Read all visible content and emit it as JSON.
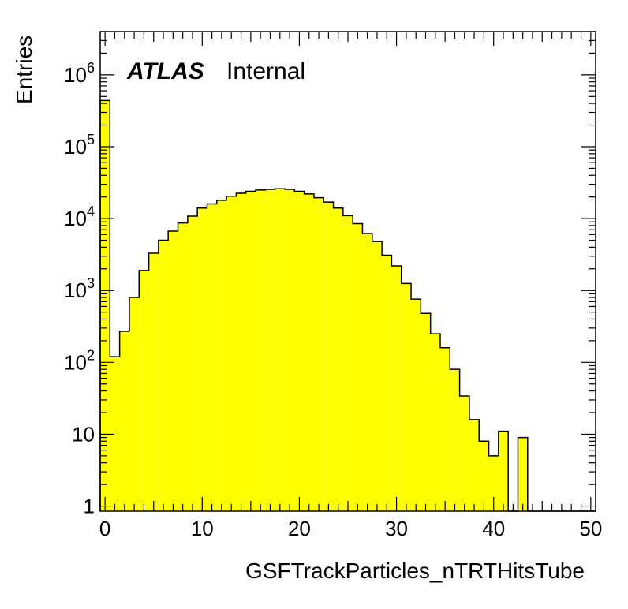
{
  "chart_data": {
    "type": "bar",
    "title": "",
    "xlabel": "GSFTrackParticles_nTRTHitsTube",
    "ylabel": "Entries",
    "xlim": [
      -0.5,
      50.5
    ],
    "ylim": [
      0.85,
      4000000
    ],
    "y_scale": "log",
    "grid": false,
    "bin_width": 1,
    "x_ticks": [
      0,
      10,
      20,
      30,
      40,
      50
    ],
    "x_tick_labels": [
      "0",
      "10",
      "20",
      "30",
      "40",
      "50"
    ],
    "y_ticks": [
      1,
      10,
      100,
      1000,
      10000,
      100000,
      1000000
    ],
    "y_tick_labels": [
      {
        "base": "1",
        "exp": ""
      },
      {
        "base": "10",
        "exp": ""
      },
      {
        "base": "10",
        "exp": "2"
      },
      {
        "base": "10",
        "exp": "3"
      },
      {
        "base": "10",
        "exp": "4"
      },
      {
        "base": "10",
        "exp": "5"
      },
      {
        "base": "10",
        "exp": "6"
      }
    ],
    "bin_centers": [
      0,
      1,
      2,
      3,
      4,
      5,
      6,
      7,
      8,
      9,
      10,
      11,
      12,
      13,
      14,
      15,
      16,
      17,
      18,
      19,
      20,
      21,
      22,
      23,
      24,
      25,
      26,
      27,
      28,
      29,
      30,
      31,
      32,
      33,
      34,
      35,
      36,
      37,
      38,
      39,
      40,
      41,
      42,
      43,
      44,
      45,
      46,
      47,
      48,
      49,
      50
    ],
    "values": [
      440000,
      120,
      270,
      800,
      1900,
      3300,
      5000,
      6700,
      8700,
      10800,
      14000,
      16000,
      18000,
      20500,
      22500,
      24000,
      25000,
      25500,
      26000,
      25500,
      24000,
      22000,
      19500,
      17000,
      14000,
      11000,
      8500,
      6200,
      4800,
      3100,
      2200,
      1250,
      760,
      480,
      250,
      160,
      80,
      34,
      16,
      8,
      5,
      11,
      0,
      9,
      0,
      0,
      0,
      0,
      0,
      0,
      0
    ],
    "fill_color": "#ffff00",
    "line_color": "#000000",
    "labels": {
      "experiment": "ATLAS",
      "status": "Internal"
    }
  }
}
